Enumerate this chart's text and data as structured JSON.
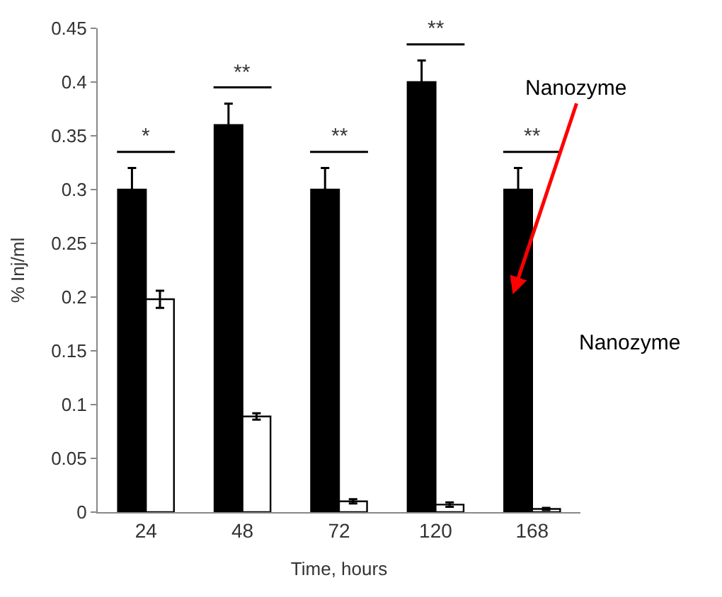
{
  "chart_data": {
    "type": "bar",
    "xlabel": "Time, hours",
    "ylabel": "% Inj/ml",
    "categories": [
      "24",
      "48",
      "72",
      "120",
      "168"
    ],
    "series": [
      {
        "color": "#000000",
        "values": [
          0.3,
          0.36,
          0.3,
          0.4,
          0.3
        ],
        "errors": [
          0.02,
          0.02,
          0.02,
          0.02,
          0.02
        ]
      },
      {
        "color": "#ffffff",
        "values": [
          0.198,
          0.089,
          0.01,
          0.007,
          0.003
        ],
        "errors": [
          0.008,
          0.003,
          0.002,
          0.002,
          0.001
        ]
      }
    ],
    "ylim": [
      0,
      0.45
    ],
    "yticks": [
      0,
      0.05,
      0.1,
      0.15,
      0.2,
      0.25,
      0.3,
      0.35,
      0.4,
      0.45
    ],
    "annotations": [
      "*",
      "**",
      "**",
      "**",
      "**",
      "Nanozyme",
      "Nanozyme"
    ]
  }
}
